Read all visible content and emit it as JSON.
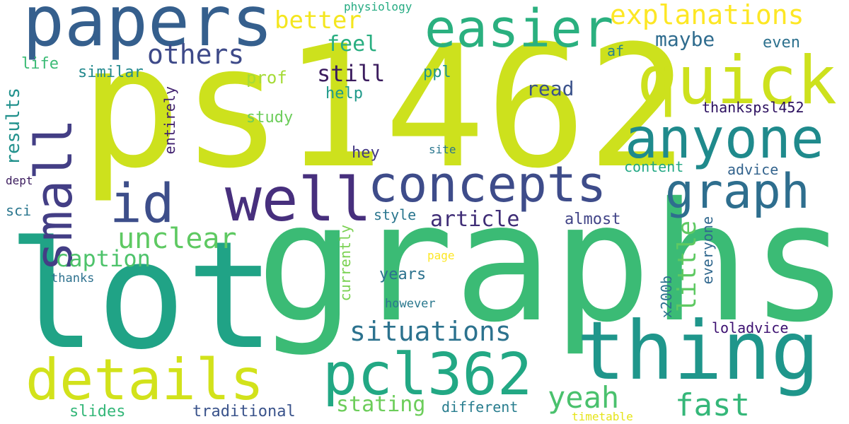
{
  "words": [
    {
      "text": "ps1462",
      "color": "#cde11d"
    },
    {
      "text": "graphs",
      "color": "#3bbb75"
    },
    {
      "text": "lot",
      "color": "#20a386"
    },
    {
      "text": "papers",
      "color": "#355f8d"
    },
    {
      "text": "thing",
      "color": "#1f968b"
    },
    {
      "text": "quick",
      "color": "#cde11d"
    },
    {
      "text": "anyone",
      "color": "#1f8a8c"
    },
    {
      "text": "easier",
      "color": "#2ab07f"
    },
    {
      "text": "well",
      "color": "#472f7d"
    },
    {
      "text": "concepts",
      "color": "#3e4c8a"
    },
    {
      "text": "details",
      "color": "#d2e21b"
    },
    {
      "text": "pcl362",
      "color": "#22a884"
    },
    {
      "text": "graph",
      "color": "#2e6e8e"
    },
    {
      "text": "id",
      "color": "#3d4e8a"
    },
    {
      "text": "small",
      "color": "#433e85"
    },
    {
      "text": "explanations",
      "color": "#fde725"
    },
    {
      "text": "others",
      "color": "#3e4a89"
    },
    {
      "text": "unclear",
      "color": "#5ec962"
    },
    {
      "text": "situations",
      "color": "#2c728e"
    },
    {
      "text": "fast",
      "color": "#35b779"
    },
    {
      "text": "yeah",
      "color": "#4ac16d"
    },
    {
      "text": "better",
      "color": "#f4e61e"
    },
    {
      "text": "little",
      "color": "#5ec962"
    },
    {
      "text": "caption",
      "color": "#4ec36b"
    },
    {
      "text": "stating",
      "color": "#6ccd5a"
    },
    {
      "text": "article",
      "color": "#3f2d76"
    },
    {
      "text": "maybe",
      "color": "#2f6c8e"
    },
    {
      "text": "still",
      "color": "#3b1c5e"
    },
    {
      "text": "feel",
      "color": "#28ae80"
    },
    {
      "text": "read",
      "color": "#3b528b"
    },
    {
      "text": "results",
      "color": "#21918c"
    },
    {
      "text": "prof",
      "color": "#a5db36"
    },
    {
      "text": "study",
      "color": "#6ccd5a"
    },
    {
      "text": "similar",
      "color": "#23898e"
    },
    {
      "text": "life",
      "color": "#3bbb75"
    },
    {
      "text": "help",
      "color": "#1f9a8a"
    },
    {
      "text": "ppl",
      "color": "#1f968b"
    },
    {
      "text": "af",
      "color": "#26828e"
    },
    {
      "text": "even",
      "color": "#2d718e"
    },
    {
      "text": "thankspsl452",
      "color": "#2d1160"
    },
    {
      "text": "entirely",
      "color": "#3f1f6e"
    },
    {
      "text": "hey",
      "color": "#443983"
    },
    {
      "text": "site",
      "color": "#2a768e"
    },
    {
      "text": "content",
      "color": "#22a884"
    },
    {
      "text": "advice",
      "color": "#33638d"
    },
    {
      "text": "almost",
      "color": "#414487"
    },
    {
      "text": "style",
      "color": "#2a768e"
    },
    {
      "text": "currently",
      "color": "#7ad151"
    },
    {
      "text": "everyone",
      "color": "#31688e"
    },
    {
      "text": "x200b",
      "color": "#2c728e"
    },
    {
      "text": "page",
      "color": "#fde725"
    },
    {
      "text": "years",
      "color": "#2c728e"
    },
    {
      "text": "however",
      "color": "#2a788e"
    },
    {
      "text": "loladvice",
      "color": "#3b0f70"
    },
    {
      "text": "sci",
      "color": "#2a768e"
    },
    {
      "text": "dept",
      "color": "#3b1c5e"
    },
    {
      "text": "thanks",
      "color": "#2d718e"
    },
    {
      "text": "different",
      "color": "#287d8e"
    },
    {
      "text": "traditional",
      "color": "#3a538b"
    },
    {
      "text": "slides",
      "color": "#35b779"
    },
    {
      "text": "timetable",
      "color": "#e5e419"
    },
    {
      "text": "physiology",
      "color": "#25ab82"
    }
  ]
}
